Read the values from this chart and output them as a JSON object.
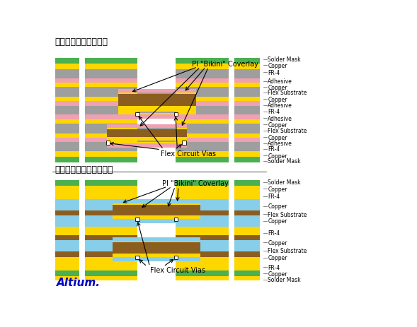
{
  "title1": "带粘接剂的软硬板压合",
  "title2": "不带粘接剂的软硬板压合",
  "label_bikini1": "PI \"Bikini\" Coverlay",
  "label_vias1": "Flex Circuit Vias",
  "label_bikini2": "PI \"Bikini\" Coverlay",
  "label_vias2": "Flex Circuit Vias",
  "altium_text": "Altium.",
  "bg_color": "#ffffff",
  "col_green": "#4CAF50",
  "col_yellow": "#FFD700",
  "col_brown": "#8B5E20",
  "col_gray": "#9E9E9E",
  "col_pink": "#F0A0B0",
  "col_blue": "#87CEEB",
  "col_white": "#ffffff",
  "col_black": "#000000",
  "col_altium": "#0000CC",
  "top_right_labels": [
    "Solder Mask",
    "Copper",
    "FR-4",
    "Adhesive",
    "Copper",
    "Flex Substrate",
    "Copper",
    "Adhesive",
    "FR-4",
    "Adhesive",
    "Copper",
    "Flex Substrate",
    "Copper",
    "Adhesive",
    "FR-4",
    "Copper",
    "Solder Mask"
  ],
  "bot_right_labels": [
    "Solder Mask",
    "Copper",
    "FR-4",
    "Copper",
    "Flex Substrate",
    "Copper",
    "FR-4",
    "Copper",
    "Flex Substrate",
    "Copper",
    "FR-4",
    "Copper",
    "Solder Mask"
  ]
}
